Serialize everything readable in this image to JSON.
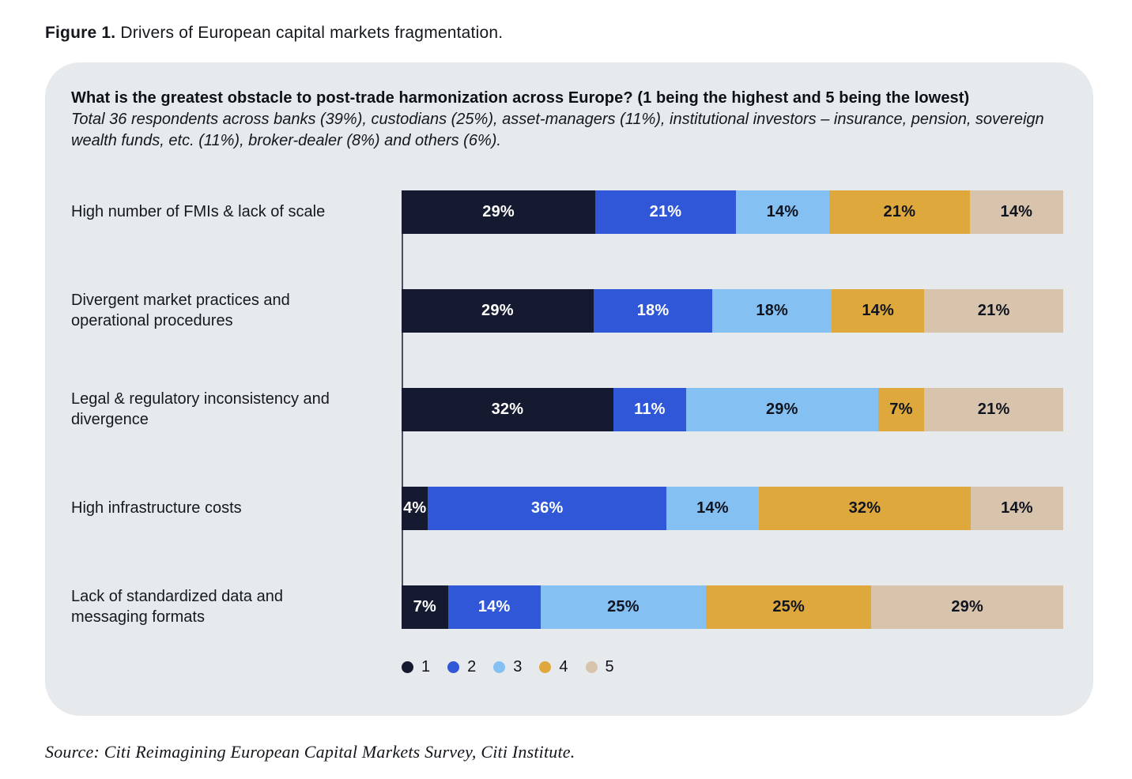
{
  "figure_title": {
    "prefix": "Figure 1.",
    "text": " Drivers of European capital markets fragmentation."
  },
  "card": {
    "question": "What is the greatest obstacle to post-trade harmonization across Europe? (1 being the highest and 5 being the lowest)",
    "subtitle": "Total 36 respondents across banks (39%), custodians (25%), asset-managers (11%), institutional investors – insurance, pension, sovereign wealth funds, etc. (11%), broker-dealer (8%) and others (6%)."
  },
  "chart_data": {
    "type": "bar",
    "variant": "horizontal-stacked",
    "title": "What is the greatest obstacle to post-trade harmonization across Europe? (1 being the highest and 5 being the lowest)",
    "unit": "%",
    "value_suffix": "%",
    "xlim": [
      0,
      100
    ],
    "grid": false,
    "legend_position": "bottom",
    "categories": [
      "High number of FMIs & lack of scale",
      "Divergent market practices and operational procedures",
      "Legal & regulatory inconsistency and divergence",
      "High infrastructure costs",
      "Lack of standardized data and messaging formats"
    ],
    "legend": [
      "1",
      "2",
      "3",
      "4",
      "5"
    ],
    "series": [
      {
        "name": "1",
        "values": [
          29,
          29,
          32,
          4,
          7
        ]
      },
      {
        "name": "2",
        "values": [
          21,
          18,
          11,
          36,
          14
        ]
      },
      {
        "name": "3",
        "values": [
          14,
          18,
          29,
          14,
          25
        ]
      },
      {
        "name": "4",
        "values": [
          21,
          14,
          7,
          32,
          25
        ]
      },
      {
        "name": "5",
        "values": [
          14,
          21,
          21,
          14,
          29
        ]
      }
    ],
    "palette": [
      {
        "label": "1",
        "hex": "#151a31",
        "text": "#ffffff"
      },
      {
        "label": "2",
        "hex": "#3057d8",
        "text": "#ffffff"
      },
      {
        "label": "3",
        "hex": "#85c0f3",
        "text": "#10141f"
      },
      {
        "label": "4",
        "hex": "#dfa83c",
        "text": "#10141f"
      },
      {
        "label": "5",
        "hex": "#d8c3ad",
        "text": "#10141f"
      }
    ]
  },
  "source": "Source: Citi Reimagining European Capital Markets Survey, Citi Institute.",
  "colors": {
    "page_bg": "#ffffff",
    "card_bg": "#e7eaed",
    "axis_line": "#4b5060",
    "text_dark": "#14171c"
  }
}
